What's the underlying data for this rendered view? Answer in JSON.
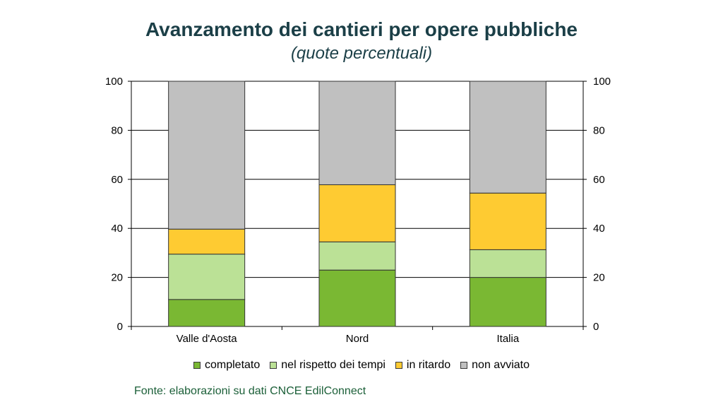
{
  "title": "Avanzamento dei cantieri per opere pubbliche",
  "subtitle": "(quote percentuali)",
  "source": "Fonte: elaborazioni su dati CNCE EdilConnect",
  "chart_data": {
    "type": "bar",
    "stacked": true,
    "categories": [
      "Valle d'Aosta",
      "Nord",
      "Italia"
    ],
    "series": [
      {
        "name": "completato",
        "color": "#7ab833",
        "values": [
          11,
          23,
          20
        ]
      },
      {
        "name": "nel rispetto dei tempi",
        "color": "#bbe196",
        "values": [
          18.5,
          11.5,
          11.3
        ]
      },
      {
        "name": "in ritardo",
        "color": "#fecb32",
        "values": [
          10.2,
          23.3,
          23.1
        ]
      },
      {
        "name": "non avviato",
        "color": "#c0c0c0",
        "values": [
          60.3,
          42.2,
          45.6
        ]
      }
    ],
    "ylim": [
      0,
      100
    ],
    "yticks": [
      "0",
      "20",
      "40",
      "60",
      "80",
      "100"
    ],
    "y2ticks": [
      "0",
      "20",
      "40",
      "60",
      "80",
      "100"
    ],
    "grid": true,
    "legend": "bottom"
  }
}
